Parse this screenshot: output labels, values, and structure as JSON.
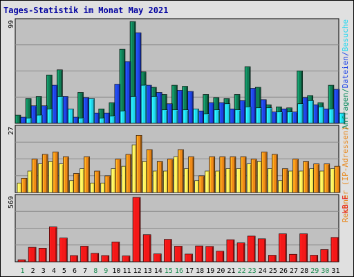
{
  "title": "Tages-Statistik im Monat May 2021",
  "chart_data": [
    {
      "type": "bar",
      "panel": "top",
      "ymax_label": "99",
      "ymax": 99,
      "categories": [
        "1",
        "2",
        "3",
        "4",
        "5",
        "6",
        "7",
        "8",
        "9",
        "10",
        "11",
        "12",
        "13",
        "14",
        "15",
        "16",
        "17",
        "18",
        "19",
        "20",
        "21",
        "22",
        "23",
        "24",
        "25",
        "26",
        "27",
        "28",
        "29",
        "30",
        "31"
      ],
      "weekend_days": [
        1,
        8,
        9,
        15,
        16,
        22,
        23,
        29,
        30
      ],
      "axis_label_parts": [
        {
          "text": "Anfragen",
          "color": "#0f8c60"
        },
        {
          "text": "/",
          "color": "#0f8c60"
        },
        {
          "text": "Dateien",
          "color": "#1e44e8"
        },
        {
          "text": "/",
          "color": "#1e44e8"
        },
        {
          "text": "Besuche",
          "color": "#22d8f0"
        }
      ],
      "series": [
        {
          "name": "Anfragen",
          "color": "#107e56",
          "values": [
            8,
            24,
            26,
            47,
            52,
            8,
            30,
            18,
            14,
            20,
            72,
            99,
            50,
            35,
            28,
            37,
            36,
            13,
            28,
            25,
            24,
            28,
            55,
            35,
            18,
            16,
            15,
            51,
            27,
            20,
            37
          ]
        },
        {
          "name": "Dateien",
          "color": "#1e44e8",
          "values": [
            6,
            17,
            17,
            37,
            26,
            6,
            25,
            10,
            10,
            38,
            60,
            88,
            37,
            30,
            19,
            32,
            31,
            12,
            20,
            20,
            14,
            22,
            34,
            23,
            11,
            14,
            11,
            25,
            18,
            14,
            33
          ]
        },
        {
          "name": "Besuche",
          "color": "#22d8f0",
          "values": [
            5,
            8,
            14,
            26,
            14,
            5,
            24,
            5,
            7,
            12,
            26,
            37,
            26,
            13,
            13,
            13,
            14,
            9,
            13,
            19,
            13,
            16,
            15,
            15,
            11,
            11,
            19,
            22,
            16,
            14,
            10
          ]
        }
      ]
    },
    {
      "type": "bar",
      "panel": "middle",
      "ymax_label": "27",
      "ymax": 27,
      "categories": [
        "1",
        "2",
        "3",
        "4",
        "5",
        "6",
        "7",
        "8",
        "9",
        "10",
        "11",
        "12",
        "13",
        "14",
        "15",
        "16",
        "17",
        "18",
        "19",
        "20",
        "21",
        "22",
        "23",
        "24",
        "25",
        "26",
        "27",
        "28",
        "29",
        "30",
        "31"
      ],
      "axis_label_parts": [
        {
          "text": "Rechner (IP-Adressen)",
          "color": "#e88a20"
        }
      ],
      "series": [
        {
          "name": "Rechner",
          "color": "#ffef55",
          "values": [
            4,
            9,
            12,
            13,
            12,
            5,
            10,
            4,
            4,
            10,
            11,
            20,
            13,
            9,
            9,
            15,
            10,
            5,
            9,
            9,
            10,
            10,
            12,
            13,
            10,
            5,
            9,
            9,
            10,
            9,
            10
          ]
        },
        {
          "name": "IP-Adressen",
          "color": "#f08a18",
          "values": [
            6,
            14,
            16,
            17,
            15,
            8,
            15,
            9,
            7,
            14,
            16,
            24,
            18,
            13,
            14,
            18,
            15,
            7,
            15,
            15,
            15,
            15,
            14,
            17,
            16,
            10,
            14,
            13,
            12,
            12,
            11
          ]
        }
      ]
    },
    {
      "type": "bar",
      "panel": "bottom",
      "ymax_label": "569",
      "ymax": 569,
      "categories": [
        "1",
        "2",
        "3",
        "4",
        "5",
        "6",
        "7",
        "8",
        "9",
        "10",
        "11",
        "12",
        "13",
        "14",
        "15",
        "16",
        "17",
        "18",
        "19",
        "20",
        "21",
        "22",
        "23",
        "24",
        "25",
        "26",
        "27",
        "28",
        "29",
        "30",
        "31"
      ],
      "axis_label_parts": [
        {
          "text": "kB F",
          "color": "#e81818"
        }
      ],
      "series": [
        {
          "name": "kB F",
          "color": "#f41818",
          "values": [
            18,
            128,
            120,
            308,
            210,
            55,
            138,
            75,
            55,
            175,
            52,
            569,
            240,
            70,
            198,
            138,
            68,
            140,
            136,
            94,
            195,
            167,
            227,
            203,
            58,
            247,
            66,
            247,
            58,
            108,
            215
          ]
        }
      ]
    }
  ]
}
